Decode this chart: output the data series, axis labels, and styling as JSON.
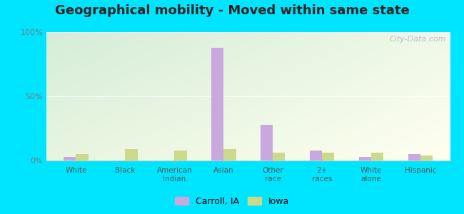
{
  "title": "Geographical mobility - Moved within same state",
  "categories": [
    "White",
    "Black",
    "American\nIndian",
    "Asian",
    "Other\nrace",
    "2+\nraces",
    "White\nalone",
    "Hispanic"
  ],
  "carroll_values": [
    3,
    0,
    0,
    88,
    28,
    8,
    3,
    5
  ],
  "iowa_values": [
    5,
    9,
    8,
    9,
    6,
    6,
    6,
    4
  ],
  "carroll_color": "#c9a8e0",
  "iowa_color": "#ccd98a",
  "ylim": [
    0,
    100
  ],
  "yticks": [
    0,
    50,
    100
  ],
  "ytick_labels": [
    "0%",
    "50%",
    "100%"
  ],
  "bg_color_topleft": "#d4edd8",
  "bg_color_topright": "#f0f8e8",
  "bg_color_bottomright": "#fffff0",
  "outer_background": "#00e5ff",
  "title_fontsize": 13,
  "legend_labels": [
    "Carroll, IA",
    "Iowa"
  ],
  "watermark": "City-Data.com"
}
